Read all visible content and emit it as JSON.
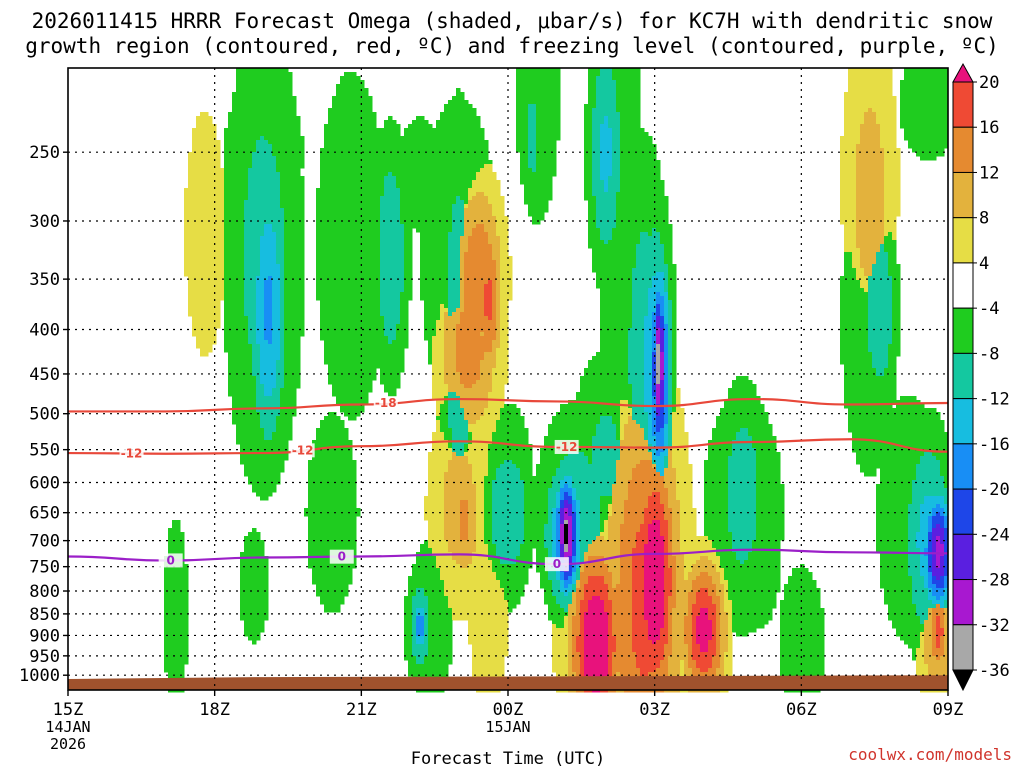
{
  "header": {
    "title_line1": "2026011415 HRRR Forecast Omega (shaded, μbar/s) for KC7H with dendritic snow",
    "title_line2": "growth region (contoured, red, ºC) and freezing level (contoured, purple, ºC)"
  },
  "footer": {
    "credit": "coolwx.com/models"
  },
  "colors": {
    "contour_red": "#e8483a",
    "contour_purple": "#9b1fc8",
    "ground": "#a0522d",
    "pos_4_8": "#e6dd45",
    "pos_8_12": "#e3b23d",
    "pos_12_16": "#e58a30",
    "pos_16_20": "#ef4a34",
    "pos_gt_20": "#e8127c",
    "neg_4_8": "#1fcc1f",
    "neg_8_12": "#14c8a0",
    "neg_12_16": "#17bde0",
    "neg_16_20": "#188ef5",
    "neg_20_24": "#1e46e8",
    "neg_24_28": "#5a1fe0",
    "neg_28_32": "#a818d0",
    "neg_32_36": "#a8a8a8",
    "neg_lt_36": "#000000"
  },
  "chart_data": {
    "type": "heatmap",
    "xlabel": "Forecast Time (UTC)",
    "ylabel": "",
    "y_scale": "log-pressure (inverted)",
    "x_ticks": [
      {
        "time": "15Z",
        "l2": "14JAN",
        "l3": "2026"
      },
      {
        "time": "18Z",
        "l2": "",
        "l3": ""
      },
      {
        "time": "21Z",
        "l2": "",
        "l3": ""
      },
      {
        "time": "00Z",
        "l2": "15JAN",
        "l3": ""
      },
      {
        "time": "03Z",
        "l2": "",
        "l3": ""
      },
      {
        "time": "06Z",
        "l2": "",
        "l3": ""
      },
      {
        "time": "09Z",
        "l2": "",
        "l3": ""
      }
    ],
    "y_ticks": [
      250,
      300,
      350,
      400,
      450,
      500,
      550,
      600,
      650,
      700,
      750,
      800,
      850,
      900,
      950,
      1000
    ],
    "colorbar_labels": [
      "20",
      "16",
      "12",
      "8",
      "4",
      "-4",
      "-8",
      "-12",
      "-16",
      "-20",
      "-24",
      "-28",
      "-32",
      "-36"
    ],
    "colorbar_levels": [
      -36,
      -32,
      -28,
      -24,
      -20,
      -16,
      -12,
      -8,
      -4,
      4,
      8,
      12,
      16,
      20
    ],
    "omega_features": [
      {
        "t": 1.4,
        "p": 310,
        "w": 0.35,
        "h": 0.55,
        "v": 7
      },
      {
        "t": 0.9,
        "p": 455,
        "w": 0.25,
        "h": 0.35,
        "v": 4
      },
      {
        "t": 2.0,
        "p": 250,
        "w": 0.8,
        "h": 0.4,
        "v": -6
      },
      {
        "t": 2.0,
        "p": 330,
        "w": 0.55,
        "h": 0.85,
        "v": -10
      },
      {
        "t": 2.05,
        "p": 380,
        "w": 0.25,
        "h": 0.5,
        "v": -17
      },
      {
        "t": 2.9,
        "p": 320,
        "w": 0.55,
        "h": 0.7,
        "v": -8
      },
      {
        "t": 3.3,
        "p": 330,
        "w": 0.25,
        "h": 0.45,
        "v": -12
      },
      {
        "t": 3.6,
        "p": 265,
        "w": 0.5,
        "h": 0.3,
        "v": -6
      },
      {
        "t": 4.0,
        "p": 330,
        "w": 0.6,
        "h": 0.65,
        "v": -8
      },
      {
        "t": 4.0,
        "p": 400,
        "w": 0.3,
        "h": 0.8,
        "v": -11
      },
      {
        "t": 4.8,
        "p": 200,
        "w": 0.4,
        "h": 0.7,
        "v": -7
      },
      {
        "t": 4.75,
        "p": 240,
        "w": 0.15,
        "h": 0.25,
        "v": -10
      },
      {
        "t": 4.5,
        "p": 640,
        "w": 0.55,
        "h": 0.55,
        "v": -6
      },
      {
        "t": 4.5,
        "p": 650,
        "w": 0.35,
        "h": 0.28,
        "v": -12
      },
      {
        "t": 4.1,
        "p": 420,
        "w": 0.45,
        "h": 0.35,
        "v": 14
      },
      {
        "t": 4.2,
        "p": 350,
        "w": 0.35,
        "h": 0.35,
        "v": 16
      },
      {
        "t": 4.3,
        "p": 370,
        "w": 0.18,
        "h": 0.3,
        "v": 17
      },
      {
        "t": 4.0,
        "p": 640,
        "w": 0.45,
        "h": 0.4,
        "v": 10
      },
      {
        "t": 4.05,
        "p": 660,
        "w": 0.25,
        "h": 0.25,
        "v": 13
      },
      {
        "t": 4.3,
        "p": 830,
        "w": 0.4,
        "h": 0.6,
        "v": 6
      },
      {
        "t": 5.6,
        "p": 200,
        "w": 0.45,
        "h": 0.7,
        "v": -7
      },
      {
        "t": 5.5,
        "p": 250,
        "w": 0.25,
        "h": 0.45,
        "v": -13
      },
      {
        "t": 5.7,
        "p": 350,
        "w": 0.4,
        "h": 0.8,
        "v": -8
      },
      {
        "t": 5.9,
        "p": 430,
        "w": 0.35,
        "h": 0.75,
        "v": -11
      },
      {
        "t": 6.0,
        "p": 440,
        "w": 0.25,
        "h": 0.55,
        "v": -16
      },
      {
        "t": 6.05,
        "p": 450,
        "w": 0.15,
        "h": 0.4,
        "v": -26
      },
      {
        "t": 6.05,
        "p": 440,
        "w": 0.06,
        "h": 0.28,
        "v": -38
      },
      {
        "t": 5.5,
        "p": 560,
        "w": 0.5,
        "h": 0.4,
        "v": -9
      },
      {
        "t": 5.2,
        "p": 660,
        "w": 0.55,
        "h": 0.4,
        "v": -11
      },
      {
        "t": 5.1,
        "p": 690,
        "w": 0.3,
        "h": 0.28,
        "v": -18
      },
      {
        "t": 5.1,
        "p": 690,
        "w": 0.15,
        "h": 0.2,
        "v": -34
      },
      {
        "t": 5.1,
        "p": 690,
        "w": 0.06,
        "h": 0.12,
        "v": -40
      },
      {
        "t": 5.7,
        "p": 900,
        "w": 0.9,
        "h": 0.55,
        "v": 12
      },
      {
        "t": 5.9,
        "p": 820,
        "w": 0.55,
        "h": 0.75,
        "v": 18
      },
      {
        "t": 6.0,
        "p": 780,
        "w": 0.3,
        "h": 0.45,
        "v": 25
      },
      {
        "t": 5.4,
        "p": 920,
        "w": 0.35,
        "h": 0.35,
        "v": 25
      },
      {
        "t": 6.5,
        "p": 890,
        "w": 0.3,
        "h": 0.25,
        "v": 22
      },
      {
        "t": 5.1,
        "p": 850,
        "w": 0.35,
        "h": 0.3,
        "v": 5
      },
      {
        "t": 6.9,
        "p": 650,
        "w": 0.7,
        "h": 0.55,
        "v": -7
      },
      {
        "t": 6.9,
        "p": 620,
        "w": 0.35,
        "h": 0.4,
        "v": -11
      },
      {
        "t": 7.1,
        "p": 700,
        "w": 0.3,
        "h": 0.35,
        "v": -8
      },
      {
        "t": 7.5,
        "p": 920,
        "w": 0.4,
        "h": 0.35,
        "v": -7
      },
      {
        "t": 8.6,
        "p": 660,
        "w": 0.5,
        "h": 0.5,
        "v": -8
      },
      {
        "t": 8.8,
        "p": 700,
        "w": 0.35,
        "h": 0.4,
        "v": -14
      },
      {
        "t": 8.9,
        "p": 720,
        "w": 0.2,
        "h": 0.2,
        "v": -30
      },
      {
        "t": 8.2,
        "p": 390,
        "w": 0.5,
        "h": 0.7,
        "v": -7
      },
      {
        "t": 8.3,
        "p": 380,
        "w": 0.25,
        "h": 0.35,
        "v": -12
      },
      {
        "t": 8.8,
        "p": 220,
        "w": 0.6,
        "h": 0.3,
        "v": -6
      },
      {
        "t": 8.2,
        "p": 270,
        "w": 0.5,
        "h": 0.7,
        "v": 7
      },
      {
        "t": 8.2,
        "p": 280,
        "w": 0.3,
        "h": 0.45,
        "v": 12
      },
      {
        "t": 8.9,
        "p": 890,
        "w": 0.3,
        "h": 0.3,
        "v": 12
      },
      {
        "t": 8.9,
        "p": 890,
        "w": 0.15,
        "h": 0.15,
        "v": 18
      },
      {
        "t": 3.7,
        "p": 880,
        "w": 0.35,
        "h": 0.35,
        "v": -8
      },
      {
        "t": 3.6,
        "p": 880,
        "w": 0.2,
        "h": 0.2,
        "v": -12
      },
      {
        "t": 3.6,
        "p": 880,
        "w": 0.08,
        "h": 0.1,
        "v": -20
      },
      {
        "t": 2.7,
        "p": 650,
        "w": 0.45,
        "h": 0.45,
        "v": -7
      },
      {
        "t": 1.1,
        "p": 850,
        "w": 0.25,
        "h": 0.5,
        "v": -6
      },
      {
        "t": 1.9,
        "p": 790,
        "w": 0.3,
        "h": 0.3,
        "v": -6
      }
    ],
    "isotherm_minus18": {
      "label": "-18",
      "t": [
        0,
        1,
        2,
        3,
        4,
        5,
        6,
        7,
        8,
        9
      ],
      "p": [
        497,
        497,
        493,
        488,
        481,
        484,
        490,
        481,
        488,
        486
      ]
    },
    "isotherm_minus12": {
      "label": "-12",
      "t": [
        0,
        1,
        2,
        3,
        4,
        5,
        6,
        7,
        8,
        9
      ],
      "p": [
        555,
        556,
        555,
        545,
        538,
        546,
        547,
        539,
        535,
        553
      ]
    },
    "freezing_level": {
      "label": "0",
      "t": [
        0,
        1,
        2,
        3,
        4,
        5,
        6,
        7,
        8,
        9
      ],
      "p": [
        730,
        738,
        732,
        730,
        726,
        745,
        725,
        717,
        722,
        724
      ]
    }
  }
}
